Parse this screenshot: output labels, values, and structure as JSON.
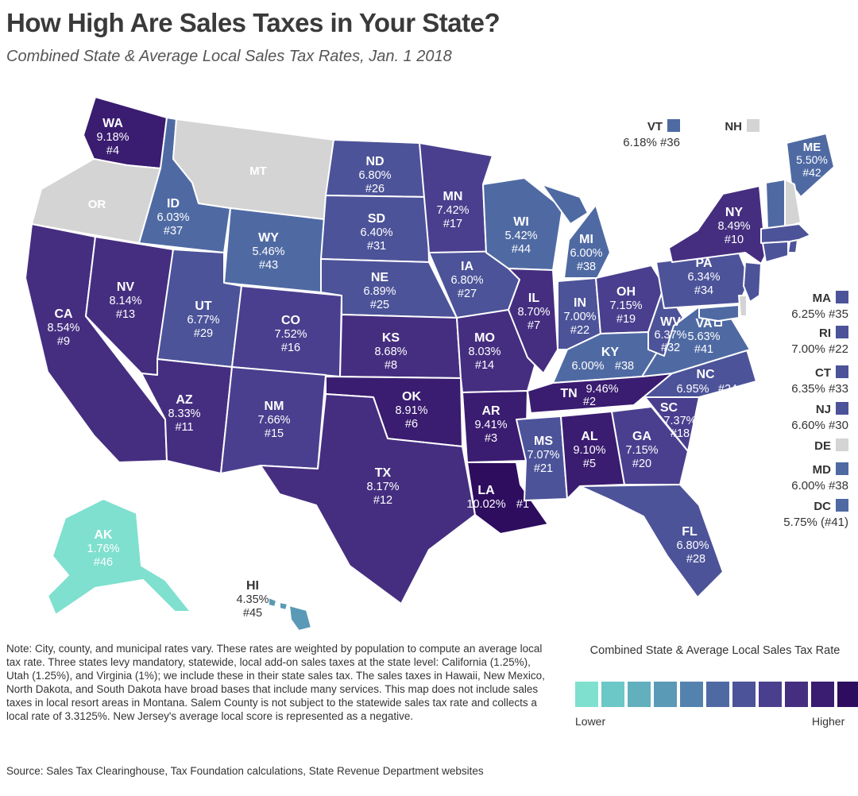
{
  "title": "How High Are Sales Taxes in Your State?",
  "subtitle": "Combined State & Average Local Sales Tax Rates, Jan. 1 2018",
  "palette": [
    "#7fe0cf",
    "#6cc7c7",
    "#62b0bd",
    "#5a9ab6",
    "#5482ae",
    "#4f6aa3",
    "#4c5399",
    "#4a3f8e",
    "#452e80",
    "#3a1c70",
    "#2e0d5f"
  ],
  "no_tax_color": "#d4d4d4",
  "states": {
    "WA": {
      "rate": "9.18%",
      "rank": "#4",
      "name": "WA"
    },
    "OR": {
      "rate": "",
      "rank": "",
      "name": "OR"
    },
    "CA": {
      "rate": "8.54%",
      "rank": "#9",
      "name": "CA"
    },
    "ID": {
      "rate": "6.03%",
      "rank": "#37",
      "name": "ID"
    },
    "NV": {
      "rate": "8.14%",
      "rank": "#13",
      "name": "NV"
    },
    "MT": {
      "rate": "",
      "rank": "",
      "name": "MT"
    },
    "WY": {
      "rate": "5.46%",
      "rank": "#43",
      "name": "WY"
    },
    "UT": {
      "rate": "6.77%",
      "rank": "#29",
      "name": "UT"
    },
    "AZ": {
      "rate": "8.33%",
      "rank": "#11",
      "name": "AZ"
    },
    "CO": {
      "rate": "7.52%",
      "rank": "#16",
      "name": "CO"
    },
    "NM": {
      "rate": "7.66%",
      "rank": "#15",
      "name": "NM"
    },
    "ND": {
      "rate": "6.80%",
      "rank": "#26",
      "name": "ND"
    },
    "SD": {
      "rate": "6.40%",
      "rank": "#31",
      "name": "SD"
    },
    "NE": {
      "rate": "6.89%",
      "rank": "#25",
      "name": "NE"
    },
    "KS": {
      "rate": "8.68%",
      "rank": "#8",
      "name": "KS"
    },
    "OK": {
      "rate": "8.91%",
      "rank": "#6",
      "name": "OK"
    },
    "TX": {
      "rate": "8.17%",
      "rank": "#12",
      "name": "TX"
    },
    "MN": {
      "rate": "7.42%",
      "rank": "#17",
      "name": "MN"
    },
    "IA": {
      "rate": "6.80%",
      "rank": "#27",
      "name": "IA"
    },
    "MO": {
      "rate": "8.03%",
      "rank": "#14",
      "name": "MO"
    },
    "AR": {
      "rate": "9.41%",
      "rank": "#3",
      "name": "AR"
    },
    "LA": {
      "rate": "10.02%",
      "rank": "#1",
      "name": "LA"
    },
    "WI": {
      "rate": "5.42%",
      "rank": "#44",
      "name": "WI"
    },
    "IL": {
      "rate": "8.70%",
      "rank": "#7",
      "name": "IL"
    },
    "MI": {
      "rate": "6.00%",
      "rank": "#38",
      "name": "MI"
    },
    "IN": {
      "rate": "7.00%",
      "rank": "#22",
      "name": "IN"
    },
    "OH": {
      "rate": "7.15%",
      "rank": "#19",
      "name": "OH"
    },
    "KY": {
      "rate": "6.00%",
      "rank": "#38",
      "name": "KY"
    },
    "TN": {
      "rate": "9.46%",
      "rank": "#2",
      "name": "TN"
    },
    "MS": {
      "rate": "7.07%",
      "rank": "#21",
      "name": "MS"
    },
    "AL": {
      "rate": "9.10%",
      "rank": "#5",
      "name": "AL"
    },
    "GA": {
      "rate": "7.15%",
      "rank": "#20",
      "name": "GA"
    },
    "FL": {
      "rate": "6.80%",
      "rank": "#28",
      "name": "FL"
    },
    "SC": {
      "rate": "7.37%",
      "rank": "#18",
      "name": "SC"
    },
    "NC": {
      "rate": "6.95%",
      "rank": "#24",
      "name": "NC"
    },
    "VA": {
      "rate": "5.63%",
      "rank": "#41",
      "name": "VA"
    },
    "WV": {
      "rate": "6.37%",
      "rank": "#32",
      "name": "WV"
    },
    "PA": {
      "rate": "6.34%",
      "rank": "#34",
      "name": "PA"
    },
    "NY": {
      "rate": "8.49%",
      "rank": "#10",
      "name": "NY"
    },
    "ME": {
      "rate": "5.50%",
      "rank": "#42",
      "name": "ME"
    },
    "AK": {
      "rate": "1.76%",
      "rank": "#46",
      "name": "AK"
    },
    "HI": {
      "rate": "4.35%",
      "rank": "#45",
      "name": "HI"
    }
  },
  "callouts": {
    "VT": {
      "name": "VT",
      "text": "6.18% #36"
    },
    "NH": {
      "name": "NH",
      "text": ""
    },
    "MA": {
      "name": "MA",
      "text": "6.25% #35"
    },
    "RI": {
      "name": "RI",
      "text": "7.00% #22"
    },
    "CT": {
      "name": "CT",
      "text": "6.35% #33"
    },
    "NJ": {
      "name": "NJ",
      "text": "6.60% #30"
    },
    "DE": {
      "name": "DE",
      "text": ""
    },
    "MD": {
      "name": "MD",
      "text": "6.00% #38"
    },
    "DC": {
      "name": "DC",
      "text": "5.75% (#41)"
    }
  },
  "note": "Note: City, county, and municipal rates vary. These rates are weighted by population to compute an average local tax rate. Three states levy mandatory, statewide, local add-on sales taxes at the state level: California (1.25%), Utah (1.25%), and Virginia (1%); we include these in their state sales tax. The sales taxes in Hawaii, New Mexico, North Dakota, and South Dakota have broad bases that include many services. This map does not include sales taxes in local resort areas in Montana. Salem County is not subject to the statewide sales tax rate and collects a local rate of 3.3125%. New Jersey's average local score is represented as a negative.",
  "source": "Source: Sales Tax Clearinghouse, Tax Foundation calculations, State Revenue Department websites",
  "legend": {
    "title": "Combined State & Average Local Sales Tax Rate",
    "low": "Lower",
    "high": "Higher"
  }
}
